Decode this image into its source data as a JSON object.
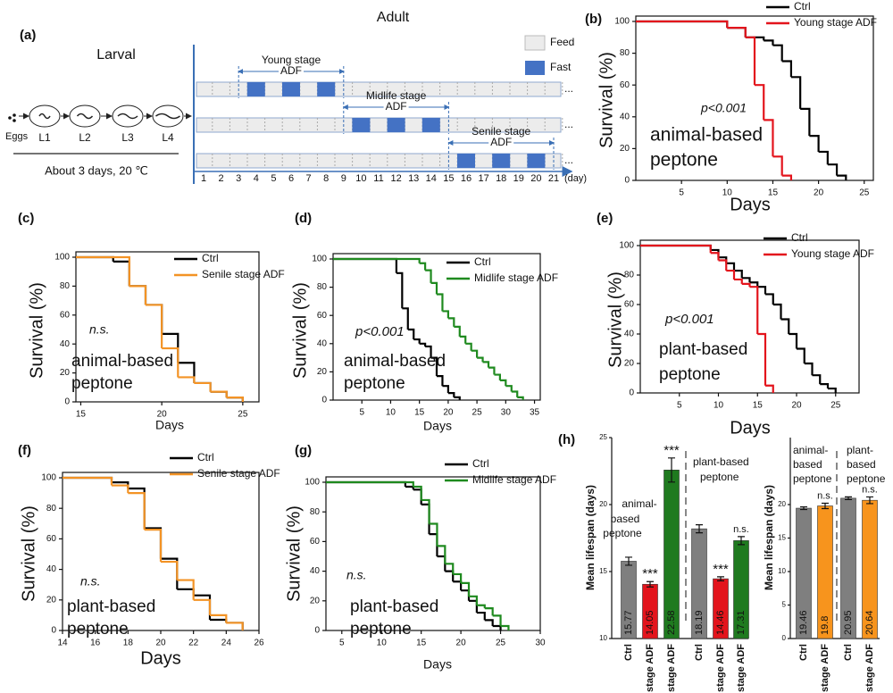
{
  "schematic": {
    "label": "(a)",
    "larval": "Larval",
    "adult": "Adult",
    "eggs": "Eggs",
    "stages": [
      "L1",
      "L2",
      "L3",
      "L4"
    ],
    "duration": "About 3 days, 20 ℃",
    "legend": [
      "Feed",
      "Fast"
    ],
    "days": [
      1,
      2,
      3,
      4,
      5,
      6,
      7,
      8,
      9,
      10,
      11,
      12,
      13,
      14,
      15,
      16,
      17,
      18,
      19,
      20,
      21
    ],
    "day_unit": "(day)",
    "ellipsis": "...",
    "rows": [
      {
        "title": "Young stage",
        "subtitle": "ADF",
        "fast_days": [
          4,
          6,
          8
        ]
      },
      {
        "title": "Midlife stage",
        "subtitle": "ADF",
        "fast_days": [
          10,
          12,
          14
        ]
      },
      {
        "title": "Senile stage",
        "subtitle": "ADF",
        "fast_days": [
          16,
          18,
          20
        ]
      }
    ]
  },
  "chart_data": [
    {
      "type": "step",
      "label": "(b)",
      "xlabel": "Days",
      "ylabel": "Survival (%)",
      "xlim": [
        0,
        26
      ],
      "ylim": [
        0,
        100
      ],
      "xticks": [
        5,
        10,
        15,
        20,
        25
      ],
      "yticks": [
        0,
        20,
        40,
        60,
        80,
        100
      ],
      "annotations": [
        "p<0.001",
        "animal-based",
        "peptone"
      ],
      "series": [
        {
          "name": "Ctrl",
          "color": "#000000",
          "x": [
            0,
            10,
            12,
            14,
            15,
            16,
            17,
            18,
            19,
            20,
            21,
            22,
            23
          ],
          "values": [
            100,
            96,
            90,
            88,
            85,
            75,
            65,
            45,
            28,
            18,
            10,
            3,
            0
          ]
        },
        {
          "name": "Young stage ADF",
          "color": "#e3141c",
          "x": [
            0,
            10,
            12,
            13,
            14,
            15,
            16,
            17
          ],
          "values": [
            100,
            96,
            90,
            60,
            38,
            15,
            3,
            0
          ]
        }
      ]
    },
    {
      "type": "step",
      "label": "(c)",
      "xlabel": "Days",
      "ylabel": "Survival (%)",
      "xlim": [
        14.7,
        26
      ],
      "ylim": [
        0,
        100
      ],
      "xticks": [
        15,
        20,
        25
      ],
      "yticks": [
        0,
        20,
        40,
        60,
        80,
        100
      ],
      "annotations": [
        "n.s.",
        "animal-based",
        "peptone"
      ],
      "series": [
        {
          "name": "Ctrl",
          "color": "#000000",
          "x": [
            14.7,
            17,
            18,
            19,
            20,
            21,
            22,
            23,
            24,
            25
          ],
          "values": [
            100,
            97,
            80,
            67,
            47,
            27,
            13,
            7,
            3,
            0
          ]
        },
        {
          "name": "Senile stage ADF",
          "color": "#f39325",
          "x": [
            14.7,
            18,
            19,
            20,
            21,
            22,
            23,
            24,
            25
          ],
          "values": [
            100,
            80,
            67,
            37,
            17,
            13,
            7,
            3,
            0
          ]
        }
      ]
    },
    {
      "type": "step",
      "label": "(d)",
      "xlabel": "Days",
      "ylabel": "Survival (%)",
      "xlim": [
        0,
        36
      ],
      "ylim": [
        0,
        100
      ],
      "xticks": [
        5,
        10,
        15,
        20,
        25,
        30,
        35
      ],
      "yticks": [
        0,
        20,
        40,
        60,
        80,
        100
      ],
      "annotations": [
        "p<0.001",
        "animal-based",
        "peptone"
      ],
      "series": [
        {
          "name": "Ctrl",
          "color": "#000000",
          "x": [
            0,
            11,
            12,
            13,
            14,
            15,
            16,
            17,
            18,
            19,
            20,
            21,
            22
          ],
          "values": [
            100,
            90,
            65,
            50,
            43,
            40,
            38,
            30,
            17,
            10,
            5,
            2,
            0
          ]
        },
        {
          "name": "Midlife stage ADF",
          "color": "#1f8a1f",
          "x": [
            0,
            15,
            16,
            17,
            18,
            19,
            20,
            21,
            22,
            23,
            24,
            25,
            26,
            27,
            28,
            29,
            30,
            31,
            32,
            33
          ],
          "values": [
            100,
            97,
            92,
            83,
            75,
            63,
            58,
            52,
            45,
            40,
            35,
            30,
            27,
            23,
            18,
            14,
            10,
            6,
            2,
            0
          ]
        }
      ]
    },
    {
      "type": "step",
      "label": "(e)",
      "xlabel": "Days",
      "ylabel": "Survival (%)",
      "xlim": [
        0,
        28
      ],
      "ylim": [
        0,
        100
      ],
      "xticks": [
        5,
        10,
        15,
        20,
        25
      ],
      "yticks": [
        0,
        20,
        40,
        60,
        80,
        100
      ],
      "annotations": [
        "p<0.001",
        "plant-based",
        "peptone"
      ],
      "series": [
        {
          "name": "Ctrl",
          "color": "#000000",
          "x": [
            0,
            9,
            10,
            11,
            12,
            13,
            14,
            15,
            16,
            17,
            18,
            19,
            20,
            21,
            22,
            23,
            24,
            25
          ],
          "values": [
            100,
            97,
            92,
            88,
            83,
            78,
            75,
            72,
            67,
            60,
            50,
            40,
            30,
            20,
            12,
            6,
            3,
            0
          ]
        },
        {
          "name": "Young stage ADF",
          "color": "#e3141c",
          "x": [
            0,
            9,
            10,
            11,
            12,
            13,
            14,
            15,
            16,
            17
          ],
          "values": [
            100,
            95,
            90,
            83,
            77,
            74,
            72,
            40,
            5,
            0
          ]
        }
      ]
    },
    {
      "type": "step",
      "label": "(f)",
      "xlabel": "Days",
      "ylabel": "Survival (%)",
      "xlim": [
        14,
        26
      ],
      "ylim": [
        0,
        100
      ],
      "xticks": [
        14,
        16,
        18,
        20,
        22,
        24,
        26
      ],
      "yticks": [
        0,
        20,
        40,
        60,
        80,
        100
      ],
      "annotations": [
        "n.s.",
        "plant-based",
        "peptone"
      ],
      "series": [
        {
          "name": "Ctrl",
          "color": "#000000",
          "x": [
            14,
            17,
            18,
            19,
            20,
            21,
            22,
            23,
            24,
            25
          ],
          "values": [
            100,
            97,
            93,
            67,
            47,
            27,
            23,
            7,
            5,
            0
          ]
        },
        {
          "name": "Senile stage ADF",
          "color": "#f39325",
          "x": [
            14,
            17,
            18,
            19,
            20,
            21,
            22,
            23,
            24,
            25
          ],
          "values": [
            100,
            95,
            90,
            66,
            45,
            33,
            20,
            10,
            5,
            0
          ]
        }
      ]
    },
    {
      "type": "step",
      "label": "(g)",
      "xlabel": "Days",
      "ylabel": "Survival (%)",
      "xlim": [
        3,
        30
      ],
      "ylim": [
        0,
        100
      ],
      "xticks": [
        5,
        10,
        15,
        20,
        25,
        30
      ],
      "yticks": [
        0,
        20,
        40,
        60,
        80,
        100
      ],
      "annotations": [
        "n.s.",
        "plant-based",
        "peptone"
      ],
      "series": [
        {
          "name": "Ctrl",
          "color": "#000000",
          "x": [
            3,
            13,
            14,
            15,
            16,
            17,
            18,
            19,
            20,
            21,
            22,
            23,
            24,
            25
          ],
          "values": [
            100,
            97,
            95,
            85,
            65,
            50,
            40,
            33,
            27,
            20,
            12,
            7,
            3,
            0
          ]
        },
        {
          "name": "Midlife stage ADF",
          "color": "#1f8a1f",
          "x": [
            3,
            14,
            15,
            16,
            17,
            18,
            19,
            20,
            21,
            22,
            23,
            24,
            25,
            26
          ],
          "values": [
            100,
            97,
            88,
            72,
            57,
            45,
            38,
            32,
            23,
            17,
            15,
            10,
            3,
            0
          ]
        }
      ]
    },
    {
      "type": "bar",
      "label": "(h)",
      "ylabel": "Mean lifespan (days)",
      "ylim": [
        10,
        25
      ],
      "yticks": [
        10,
        15,
        20,
        25
      ],
      "categories": [
        "Ctrl",
        "Young stage ADF",
        "Midlife stage ADF",
        "Ctrl",
        "Young stage ADF",
        "Midlife stage ADF"
      ],
      "values": [
        15.77,
        14.05,
        22.58,
        18.19,
        14.46,
        17.31
      ],
      "errors": [
        0.3,
        0.2,
        0.9,
        0.3,
        0.15,
        0.3
      ],
      "colors": [
        "#7f7f7f",
        "#e3141c",
        "#1f7a1f",
        "#7f7f7f",
        "#e3141c",
        "#1f7a1f"
      ],
      "significance": [
        null,
        "***",
        "***",
        null,
        "***",
        "n.s."
      ],
      "groups": [
        [
          "animal-",
          "based",
          "peptone"
        ],
        [
          "plant-based",
          "peptone"
        ]
      ]
    },
    {
      "type": "bar",
      "ylabel": "Mean lifespan (days)",
      "ylim": [
        0,
        30
      ],
      "yticks": [
        0,
        5,
        10,
        15,
        20
      ],
      "categories": [
        "Ctrl",
        "Senile stage ADF",
        "Ctrl",
        "Senile stage ADF"
      ],
      "values": [
        19.46,
        19.8,
        20.95,
        20.64
      ],
      "errors": [
        0.2,
        0.4,
        0.2,
        0.5
      ],
      "colors": [
        "#7f7f7f",
        "#f7941d",
        "#7f7f7f",
        "#f7941d"
      ],
      "significance": [
        null,
        "n.s.",
        null,
        "n.s."
      ],
      "groups": [
        [
          "animal-",
          "based",
          "peptone"
        ],
        [
          "plant-",
          "based",
          "peptone"
        ]
      ]
    }
  ]
}
